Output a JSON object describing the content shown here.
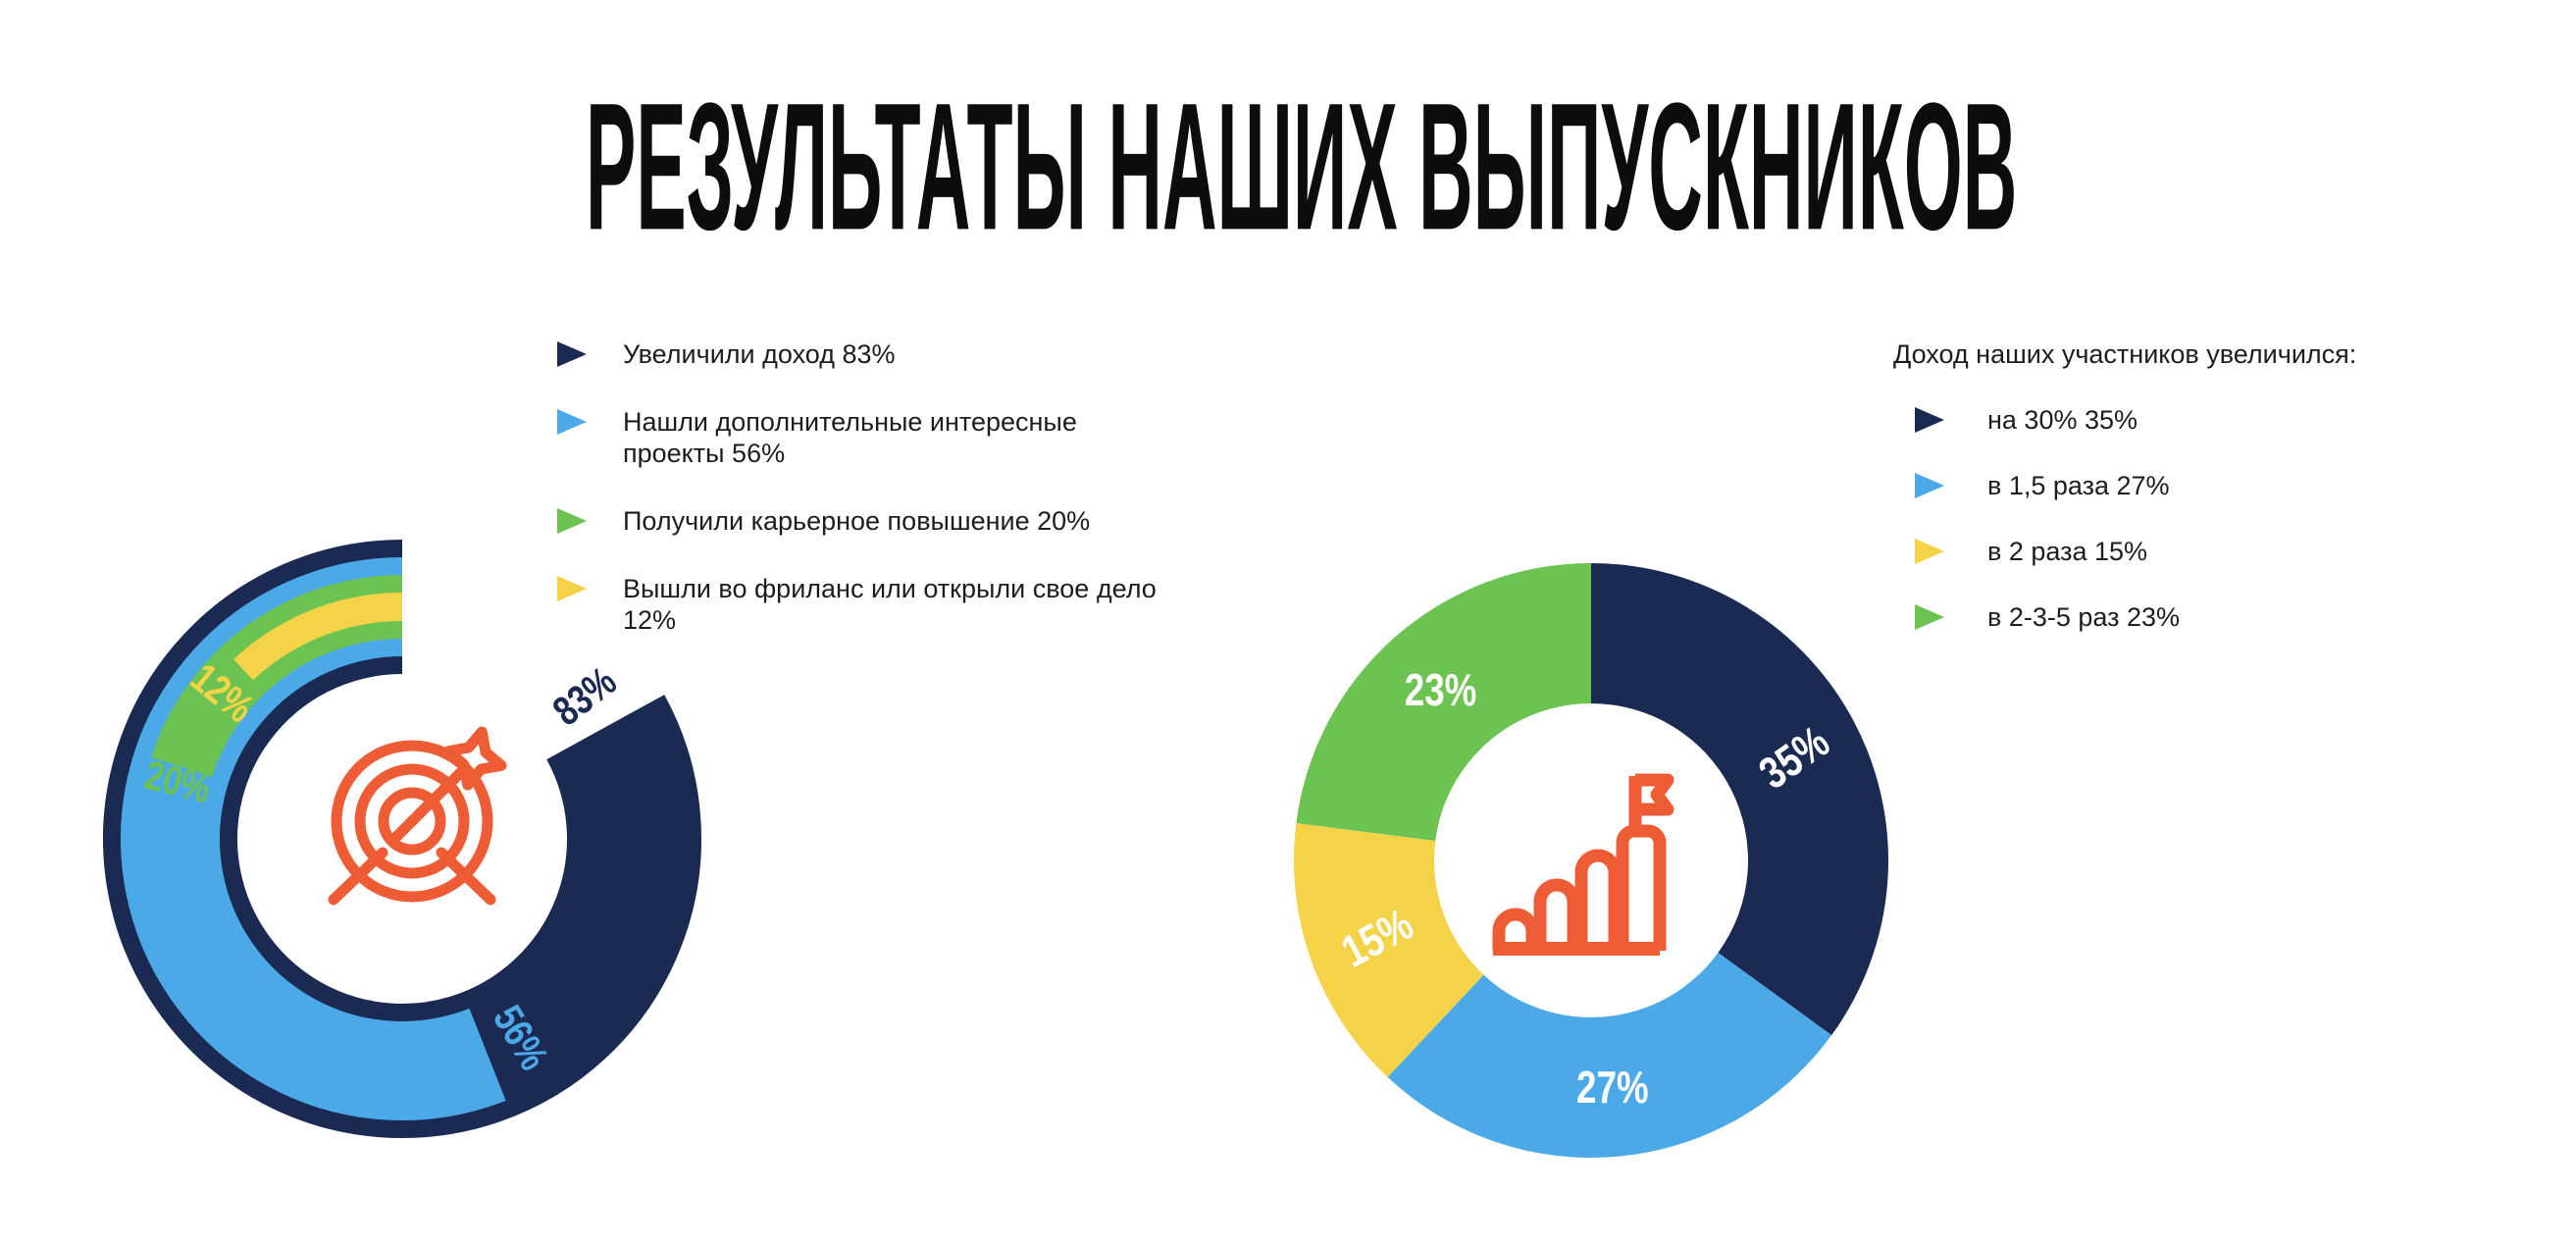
{
  "page": {
    "title": "РЕЗУЛЬТАТЫ НАШИХ ВЫПУСКНИКОВ"
  },
  "colors": {
    "navy": "#1B2A52",
    "blue": "#4BA9E8",
    "green": "#6DC351",
    "yellow": "#F5D348",
    "orange": "#EE5C36",
    "text": "#1D1D1D",
    "title": "#0D0D0D",
    "label_white": "#FFFFFF"
  },
  "left_legend": {
    "items": [
      {
        "label": "Увеличили доход 83%",
        "color_key": "navy"
      },
      {
        "label": "Нашли дополнительные интересные проекты 56%",
        "color_key": "blue"
      },
      {
        "label": "Получили карьерное повышение 20%",
        "color_key": "green"
      },
      {
        "label": "Вышли во фриланс или открыли свое дело 12%",
        "color_key": "yellow"
      }
    ]
  },
  "right_legend": {
    "title": "Доход наших участников увеличился:",
    "items": [
      {
        "label": "на 30% 35%",
        "color_key": "navy"
      },
      {
        "label": "в 1,5 раза 27%",
        "color_key": "blue"
      },
      {
        "label": "в 2 раза 15%",
        "color_key": "yellow"
      },
      {
        "label": "в 2-3-5 раз 23%",
        "color_key": "green"
      }
    ]
  },
  "chart_data": [
    {
      "type": "radial_bar",
      "unit": "%",
      "direction": "counterclockwise",
      "start_angle_deg": 0,
      "outer_radius": 305,
      "inner_radius": 168,
      "label_radius": 236,
      "label_font_size": 42,
      "center_icon": "target-dart-icon",
      "series": [
        {
          "name": "Увеличили доход",
          "value": 83,
          "label": "83%",
          "color_key": "navy",
          "band_width": 137,
          "label_offset_deg": 9
        },
        {
          "name": "Нашли дополнительные интересные проекты",
          "value": 56,
          "label": "56%",
          "color_key": "blue",
          "band_width": 101,
          "label_offset_deg": 9
        },
        {
          "name": "Получили карьерное повышение",
          "value": 20,
          "label": "20%",
          "color_key": "green",
          "band_width": 65,
          "label_offset_deg": 4
        },
        {
          "name": "Вышли во фриланс или открыли свое дело",
          "value": 12,
          "label": "12%",
          "color_key": "yellow",
          "band_width": 29,
          "label_offset_deg": 8
        }
      ]
    },
    {
      "type": "donut",
      "unit": "%",
      "direction": "clockwise",
      "start_angle_deg": 0,
      "outer_radius": 303,
      "inner_radius": 160,
      "label_radius": 232,
      "label_font_size": 46,
      "label_color_key": "label_white",
      "center_icon": "growth-flag-icon",
      "slices": [
        {
          "name": "на 30%",
          "value": 35,
          "label": "35%",
          "color_key": "navy",
          "label_tilt_deg": -35
        },
        {
          "name": "в 1,5 раза",
          "value": 27,
          "label": "27%",
          "color_key": "blue",
          "label_tilt_deg": 0
        },
        {
          "name": "в 2 раза",
          "value": 15,
          "label": "15%",
          "color_key": "yellow",
          "label_tilt_deg": -28
        },
        {
          "name": "в 2-3-5 раз",
          "value": 23,
          "label": "23%",
          "color_key": "green",
          "label_tilt_deg": 0
        }
      ]
    }
  ]
}
